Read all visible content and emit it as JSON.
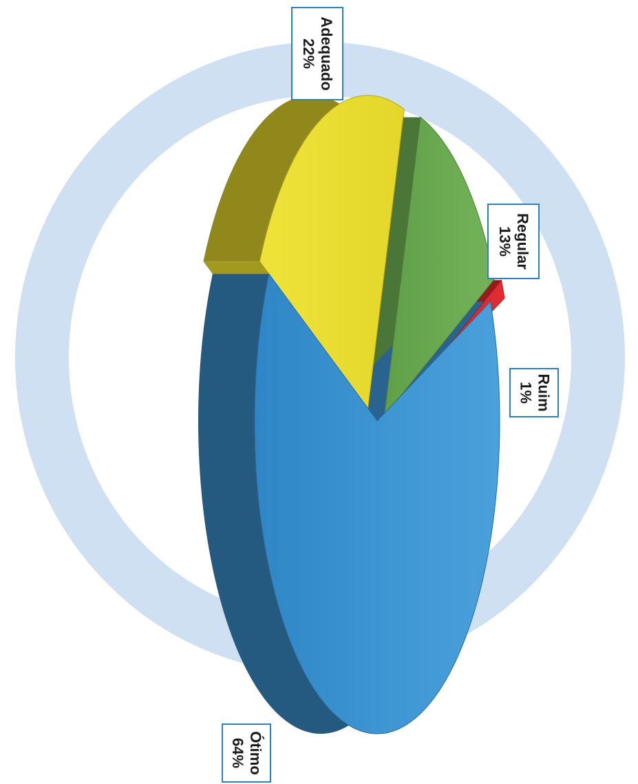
{
  "chart_data": {
    "type": "pie",
    "style": "3d-exploded",
    "orientation": "rotated-90-clockwise",
    "slices": [
      {
        "label": "Adequado",
        "value": 22,
        "value_label": "22%",
        "color": "#e8dc2c"
      },
      {
        "label": "Regular",
        "value": 13,
        "value_label": "13%",
        "color": "#6aa84f"
      },
      {
        "label": "Ruim",
        "value": 1,
        "value_label": "1%",
        "color": "#d8262b"
      },
      {
        "label": "Ótimo",
        "value": 64,
        "value_label": "64%",
        "color": "#3a8fcf"
      }
    ],
    "background_ring_color": "#cfe0f3",
    "label_border_color": "#2a7fc1"
  }
}
